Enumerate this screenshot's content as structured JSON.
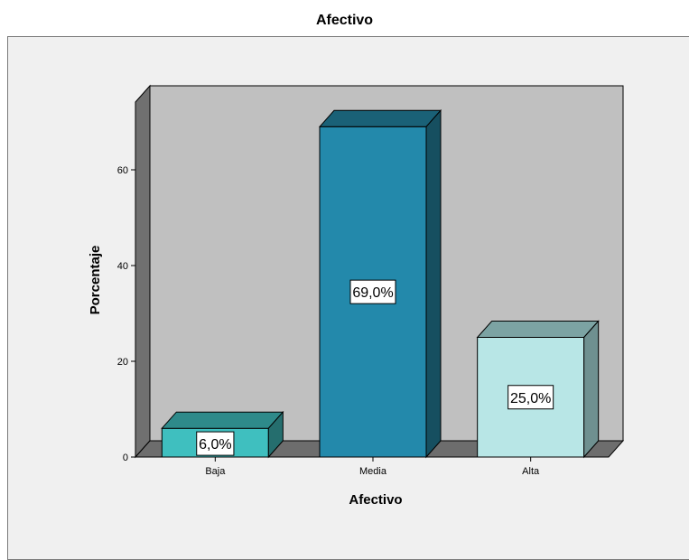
{
  "chart_data": {
    "type": "bar",
    "title": "Afectivo",
    "categories": [
      "Baja",
      "Media",
      "Alta"
    ],
    "values": [
      6.0,
      69.0,
      25.0
    ],
    "data_labels": [
      "6,0%",
      "69,0%",
      "25,0%"
    ],
    "xlabel": "Afectivo",
    "ylabel": "Porcentaje",
    "ylim": [
      0,
      70
    ],
    "yticks": [
      0,
      20,
      40,
      60
    ],
    "grid": false,
    "style": "3d",
    "colors": {
      "bars": [
        {
          "front": "#3fbfbf",
          "top": "#2e8a8a",
          "side": "#256e6e"
        },
        {
          "front": "#2389ab",
          "top": "#1a6177",
          "side": "#164f60"
        },
        {
          "front": "#b8e6e6",
          "top": "#7ca3a3",
          "side": "#6f9090"
        }
      ],
      "wall": "#c0c0c0",
      "wall_side": "#707070",
      "floor": "#6d6d6d",
      "frame_bg": "#f0f0f0"
    }
  }
}
